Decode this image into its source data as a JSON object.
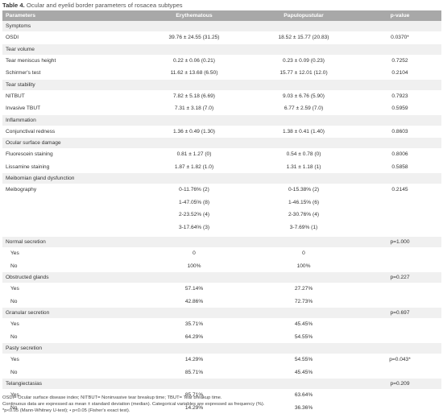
{
  "caption": {
    "label": "Table 4.",
    "text": "Ocular and eyelid border parameters of rosacea subtypes"
  },
  "headers": [
    "Parameters",
    "Erythematous",
    "Papulopustular",
    "p-value"
  ],
  "rows": [
    {
      "kind": "sec",
      "cells": [
        "Symptoms",
        "",
        "",
        ""
      ]
    },
    {
      "kind": "row",
      "cells": [
        "OSDI",
        "39.76 ± 24.55 (31.25)",
        "18.52 ± 15.77 (20.83)",
        "0.0370*"
      ]
    },
    {
      "kind": "sec",
      "cells": [
        "Tear volume",
        "",
        "",
        ""
      ]
    },
    {
      "kind": "row",
      "cells": [
        "Tear meniscus height",
        "0.22 ± 0.06 (0.21)",
        "0.23 ± 0.09 (0.23)",
        "0.7252"
      ]
    },
    {
      "kind": "row",
      "cells": [
        "Schirmer's test",
        "11.62 ± 13.68 (6.50)",
        "15.77 ± 12.01 (12.0)",
        "0.2104"
      ]
    },
    {
      "kind": "sec",
      "cells": [
        "Tear stability",
        "",
        "",
        ""
      ]
    },
    {
      "kind": "row",
      "cells": [
        "NITBUT",
        "7.82 ± 5.18 (6.69)",
        "9.03 ± 6.76 (5.90)",
        "0.7923"
      ]
    },
    {
      "kind": "row",
      "cells": [
        "Invasive TBUT",
        "7.31 ± 3.18 (7.0)",
        "6.77 ± 2.59 (7.0)",
        "0.5959"
      ]
    },
    {
      "kind": "sec",
      "cells": [
        "Inflammation",
        "",
        "",
        ""
      ]
    },
    {
      "kind": "row",
      "cells": [
        "Conjunctival redness",
        "1.36 ± 0.49 (1.30)",
        "1.38 ± 0.41 (1.40)",
        "0.8603"
      ]
    },
    {
      "kind": "sec",
      "cells": [
        "Ocular surface damage",
        "",
        "",
        ""
      ]
    },
    {
      "kind": "row",
      "cells": [
        "Fluorescein staining",
        "0.81 ± 1.27 (0)",
        "0.54 ± 0.78 (0)",
        "0.8006"
      ]
    },
    {
      "kind": "row",
      "cells": [
        "Lissamine staining",
        "1.87 ± 1.82 (1.0)",
        "1.31 ± 1.18 (1)",
        "0.5858"
      ]
    },
    {
      "kind": "sec",
      "cells": [
        "Meibomian gland dysfunction",
        "",
        "",
        ""
      ]
    },
    {
      "kind": "row",
      "cells": [
        "Meibography",
        "0-11.76% (2)",
        "0-15.38% (2)",
        "0.2145"
      ]
    },
    {
      "kind": "row",
      "cells": [
        "",
        "1-47.05% (8)",
        "1-46.15% (6)",
        ""
      ]
    },
    {
      "kind": "row",
      "cells": [
        "",
        "2-23.52% (4)",
        "2-30.76% (4)",
        ""
      ]
    },
    {
      "kind": "row",
      "cells": [
        "",
        "3-17.64% (3)",
        "3-7.69% (1)",
        ""
      ]
    },
    {
      "kind": "gap",
      "cells": [
        "",
        "",
        "",
        ""
      ]
    },
    {
      "kind": "sec",
      "cells": [
        "Normal secretion",
        "",
        "",
        "p=1.000"
      ]
    },
    {
      "kind": "row",
      "indent": true,
      "cells": [
        "Yes",
        "0",
        "0",
        ""
      ]
    },
    {
      "kind": "row",
      "indent": true,
      "cells": [
        "No",
        "100%",
        "100%",
        ""
      ]
    },
    {
      "kind": "sec",
      "cells": [
        "Obstructed glands",
        "",
        "",
        "p=0.227"
      ]
    },
    {
      "kind": "row",
      "indent": true,
      "cells": [
        "Yes",
        "57.14%",
        "27.27%",
        ""
      ]
    },
    {
      "kind": "row",
      "indent": true,
      "cells": [
        "No",
        "42.86%",
        "72.73%",
        ""
      ]
    },
    {
      "kind": "sec",
      "cells": [
        "Granular secretion",
        "",
        "",
        "p=0.697"
      ]
    },
    {
      "kind": "row",
      "indent": true,
      "cells": [
        "Yes",
        "35.71%",
        "45.45%",
        ""
      ]
    },
    {
      "kind": "row",
      "indent": true,
      "cells": [
        "No",
        "64.29%",
        "54.55%",
        ""
      ]
    },
    {
      "kind": "sec",
      "cells": [
        "Pasty secretion",
        "",
        "",
        ""
      ]
    },
    {
      "kind": "row",
      "indent": true,
      "cells": [
        "Yes",
        "14.29%",
        "54.55%",
        "p=0.043*"
      ]
    },
    {
      "kind": "row",
      "indent": true,
      "cells": [
        "No",
        "85.71%",
        "45.45%",
        ""
      ]
    },
    {
      "kind": "sec",
      "cells": [
        "Telangiectasias",
        "",
        "",
        "p=0.209"
      ]
    },
    {
      "kind": "row",
      "indent": true,
      "cells": [
        "Yes",
        "85.71%",
        "63.64%",
        ""
      ]
    },
    {
      "kind": "row",
      "indent": true,
      "cells": [
        "No",
        "14.29%",
        "36.36%",
        ""
      ]
    }
  ],
  "notes": [
    "OSDI= Ocular surface disease index; NITBUT= Noninvasive tear breakup time; TBUT= Tear breakup time.",
    "Continuous data are expressed as mean ± standard deviation (median). Categorical variables are expressed as frequency (%).",
    "*p<0.05 (Mann-Whitney U-test); • p<0.05 (Fisher's exact test)."
  ]
}
